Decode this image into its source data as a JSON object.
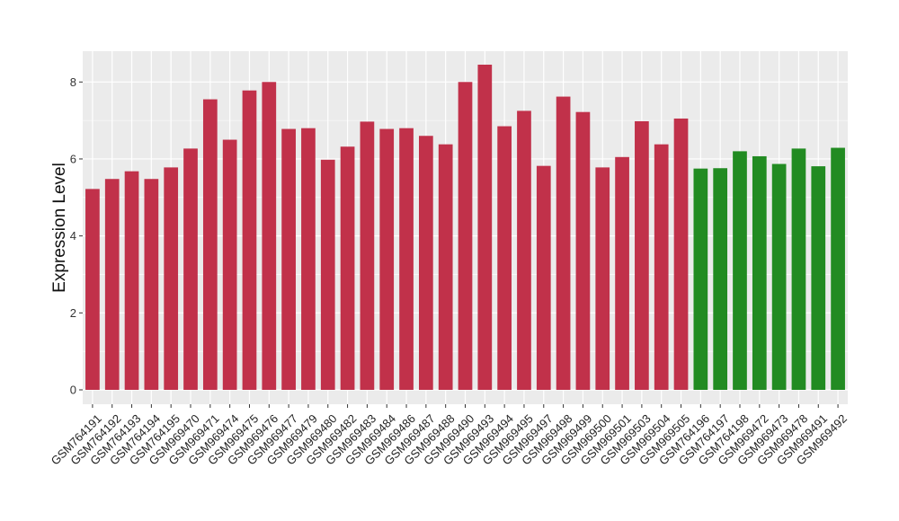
{
  "chart_data": {
    "type": "bar",
    "xlabel": "",
    "ylabel": "Expression Level",
    "ylim": [
      0,
      8.8
    ],
    "yticks": [
      0,
      2,
      4,
      6,
      8
    ],
    "grid": true,
    "categories": [
      "GSM764191",
      "GSM764192",
      "GSM764193",
      "GSM764194",
      "GSM764195",
      "GSM969470",
      "GSM969471",
      "GSM969474",
      "GSM969475",
      "GSM969476",
      "GSM969477",
      "GSM969479",
      "GSM969480",
      "GSM969482",
      "GSM969483",
      "GSM969484",
      "GSM969486",
      "GSM969487",
      "GSM969488",
      "GSM969490",
      "GSM969493",
      "GSM969494",
      "GSM969495",
      "GSM969497",
      "GSM969498",
      "GSM969499",
      "GSM969500",
      "GSM969501",
      "GSM969503",
      "GSM969504",
      "GSM969505",
      "GSM764196",
      "GSM764197",
      "GSM764198",
      "GSM969472",
      "GSM969473",
      "GSM969478",
      "GSM969491",
      "GSM969492"
    ],
    "values": [
      5.22,
      5.48,
      5.68,
      5.48,
      5.78,
      6.27,
      7.55,
      6.5,
      7.78,
      8.0,
      6.78,
      6.8,
      5.98,
      6.32,
      6.97,
      6.78,
      6.8,
      6.6,
      6.38,
      8.0,
      8.45,
      6.85,
      7.25,
      5.82,
      7.62,
      7.22,
      5.78,
      6.05,
      6.98,
      6.38,
      7.05,
      5.75,
      5.76,
      6.2,
      6.07,
      5.87,
      6.27,
      5.81,
      6.29
    ],
    "bar_colors": [
      "#c1314a",
      "#c1314a",
      "#c1314a",
      "#c1314a",
      "#c1314a",
      "#c1314a",
      "#c1314a",
      "#c1314a",
      "#c1314a",
      "#c1314a",
      "#c1314a",
      "#c1314a",
      "#c1314a",
      "#c1314a",
      "#c1314a",
      "#c1314a",
      "#c1314a",
      "#c1314a",
      "#c1314a",
      "#c1314a",
      "#c1314a",
      "#c1314a",
      "#c1314a",
      "#c1314a",
      "#c1314a",
      "#c1314a",
      "#c1314a",
      "#c1314a",
      "#c1314a",
      "#c1314a",
      "#c1314a",
      "#228b22",
      "#228b22",
      "#228b22",
      "#228b22",
      "#228b22",
      "#228b22",
      "#228b22",
      "#228b22"
    ],
    "panel_color": "#ebebeb",
    "grid_color": "#ffffff"
  }
}
